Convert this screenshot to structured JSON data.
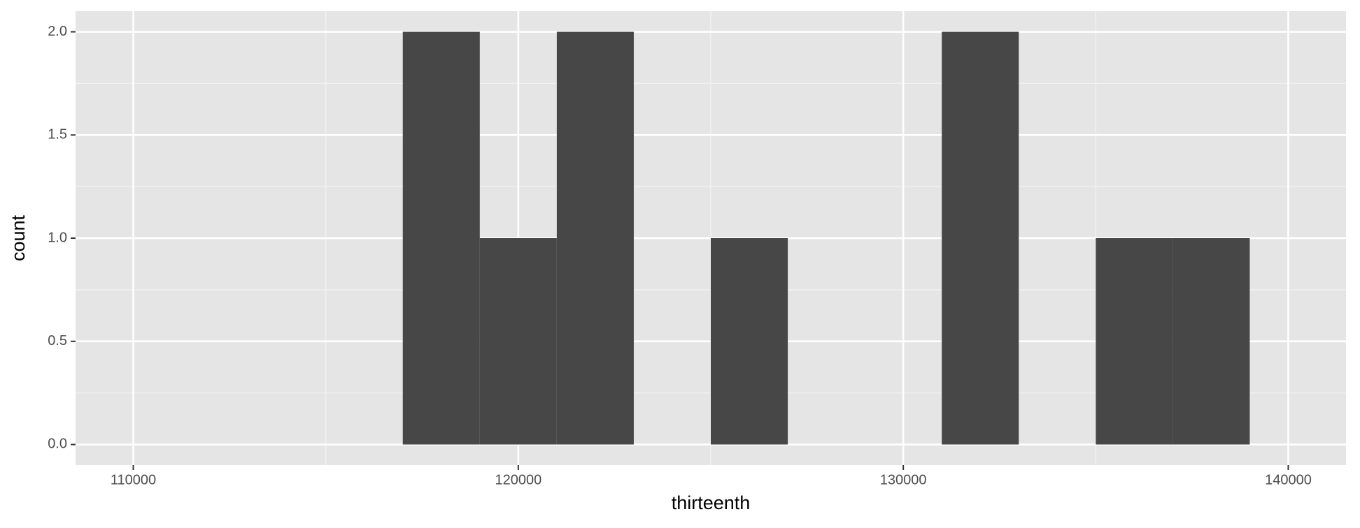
{
  "chart_data": {
    "type": "histogram",
    "x_label": "thirteenth",
    "y_label": "count",
    "bins": [
      117000,
      119000,
      121000,
      123000,
      125000,
      127000,
      129000,
      131000,
      133000,
      135000,
      137000,
      139000
    ],
    "values": [
      2,
      1,
      2,
      0,
      1,
      0,
      0,
      2,
      0,
      1,
      1
    ],
    "color": "#474747",
    "xlim": [
      108500,
      141500
    ],
    "ylim": [
      -0.1,
      2.1
    ],
    "xticks": [
      110000,
      120000,
      130000,
      140000
    ],
    "yticks": [
      {
        "value": 0,
        "label": "0.0"
      },
      0.5,
      {
        "value": 1,
        "label": "1.0"
      },
      1.5,
      {
        "value": 2,
        "label": "2.0"
      }
    ],
    "grid": true
  }
}
